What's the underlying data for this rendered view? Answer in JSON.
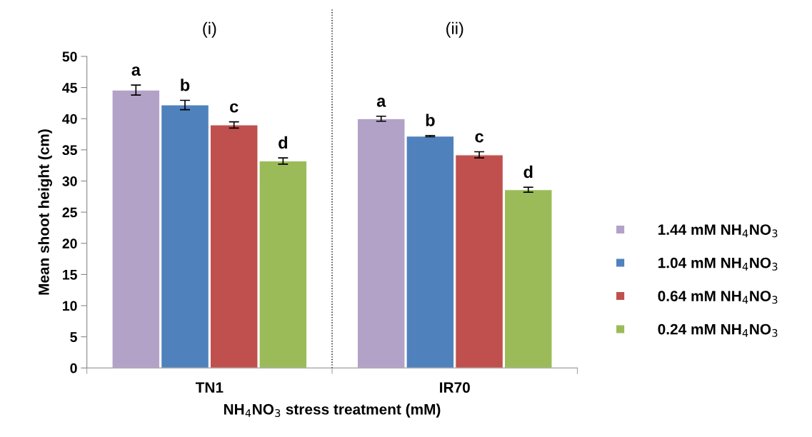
{
  "chart_data": {
    "type": "bar",
    "categories": [
      "TN1",
      "IR70"
    ],
    "xlabel": "NH$_{4}$NO$_{3}$ stress treatment (mM)",
    "ylabel": "Mean shoot height (cm)",
    "ylim": [
      0,
      50
    ],
    "yticks": [
      0,
      5,
      10,
      15,
      20,
      25,
      30,
      35,
      40,
      45,
      50
    ],
    "grid": false,
    "legend": "right",
    "annotations": [
      "(i)",
      "(ii)"
    ],
    "series": [
      {
        "name": "1.44 mM NH$_{4}$NO$_{3}$",
        "color": "#b3a2c7",
        "values": [
          44.6,
          40.0
        ],
        "errors": [
          0.8,
          0.4
        ],
        "value_labels": [
          "a",
          "a"
        ]
      },
      {
        "name": "1.04 mM NH$_{4}$NO$_{3}$",
        "color": "#4f81bd",
        "values": [
          42.2,
          37.2
        ],
        "errors": [
          0.75,
          0.1
        ],
        "value_labels": [
          "b",
          "b"
        ]
      },
      {
        "name": "0.64 mM NH$_{4}$NO$_{3}$",
        "color": "#c0504d",
        "values": [
          39.0,
          34.2
        ],
        "errors": [
          0.5,
          0.5
        ],
        "value_labels": [
          "c",
          "c"
        ]
      },
      {
        "name": "0.24 mM NH$_{4}$NO$_{3}$",
        "color": "#9bbb59",
        "values": [
          33.2,
          28.6
        ],
        "errors": [
          0.5,
          0.4
        ],
        "value_labels": [
          "d",
          "d"
        ]
      }
    ]
  }
}
